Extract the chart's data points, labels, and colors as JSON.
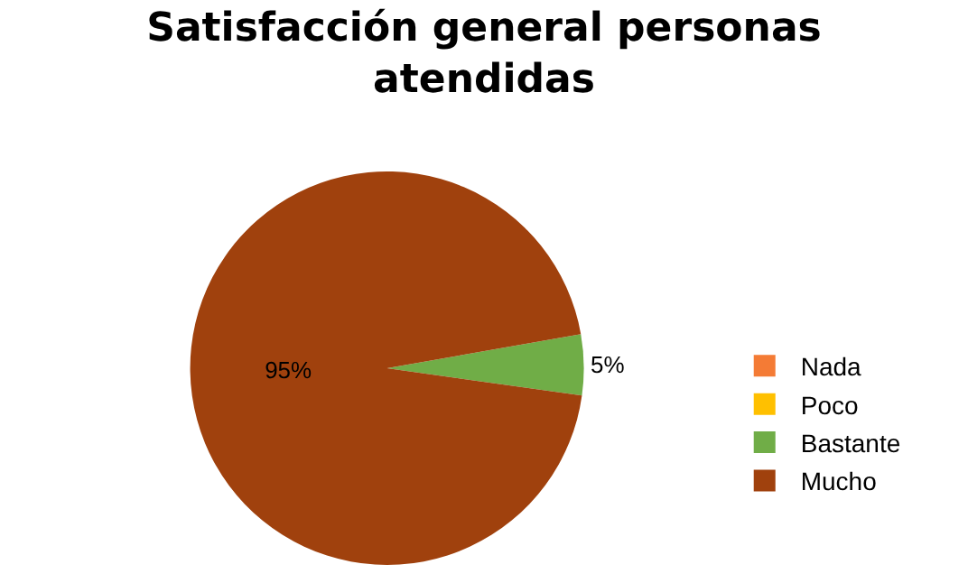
{
  "chart_data": {
    "type": "pie",
    "title": "Satisfacción general personas atendidas",
    "categories": [
      "Nada",
      "Poco",
      "Bastante",
      "Mucho"
    ],
    "values": [
      0,
      0,
      5,
      95
    ],
    "colors": [
      "#f47b35",
      "#ffc000",
      "#70ad47",
      "#a0410d"
    ],
    "value_labels": [
      null,
      null,
      "5%",
      "95%"
    ],
    "legend": "right"
  }
}
